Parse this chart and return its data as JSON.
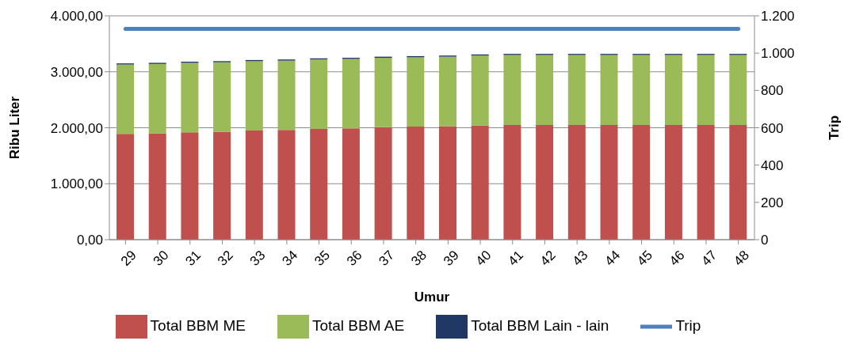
{
  "chart_data": {
    "type": "bar",
    "stacked": true,
    "xlabel": "Umur",
    "ylabel": "Ribu Liter",
    "y2label": "Trip",
    "categories": [
      "29",
      "30",
      "31",
      "32",
      "33",
      "34",
      "35",
      "36",
      "37",
      "38",
      "39",
      "40",
      "41",
      "42",
      "43",
      "44",
      "45",
      "46",
      "47",
      "48"
    ],
    "series": [
      {
        "name": "Total BBM ME",
        "color": "#c0504d",
        "values": [
          1890,
          1900,
          1920,
          1930,
          1950,
          1960,
          1980,
          1990,
          2010,
          2020,
          2030,
          2040,
          2050,
          2050,
          2050,
          2050,
          2050,
          2050,
          2050,
          2050
        ]
      },
      {
        "name": "Total BBM AE",
        "color": "#9bbb59",
        "values": [
          1240,
          1240,
          1240,
          1240,
          1240,
          1240,
          1240,
          1240,
          1240,
          1240,
          1240,
          1250,
          1250,
          1250,
          1250,
          1250,
          1250,
          1250,
          1250,
          1250
        ]
      },
      {
        "name": "Total BBM Lain - lain",
        "color": "#1f3864",
        "values": [
          20,
          20,
          20,
          20,
          20,
          20,
          20,
          20,
          20,
          20,
          20,
          20,
          20,
          20,
          20,
          20,
          20,
          20,
          20,
          20
        ]
      },
      {
        "name": "Trip",
        "type": "line",
        "axis": "y2",
        "color": "#4f81bd",
        "values": [
          1130,
          1130,
          1130,
          1130,
          1130,
          1130,
          1130,
          1130,
          1130,
          1130,
          1130,
          1130,
          1130,
          1130,
          1130,
          1130,
          1130,
          1130,
          1130,
          1130
        ]
      }
    ],
    "ylim": [
      0,
      4000
    ],
    "yticks": [
      {
        "value": 0,
        "label": "0,00"
      },
      {
        "value": 1000,
        "label": "1.000,00"
      },
      {
        "value": 2000,
        "label": "2.000,00"
      },
      {
        "value": 3000,
        "label": "3.000,00"
      },
      {
        "value": 4000,
        "label": "4.000,00"
      }
    ],
    "y2lim": [
      0,
      1200
    ],
    "y2ticks": [
      0,
      200,
      400,
      600,
      800,
      {
        "value": 1000,
        "label": "1.000"
      },
      {
        "value": 1200,
        "label": "1.200"
      }
    ],
    "grid": "y",
    "legend": "bottom",
    "marker": "none",
    "line_style": "solid"
  }
}
